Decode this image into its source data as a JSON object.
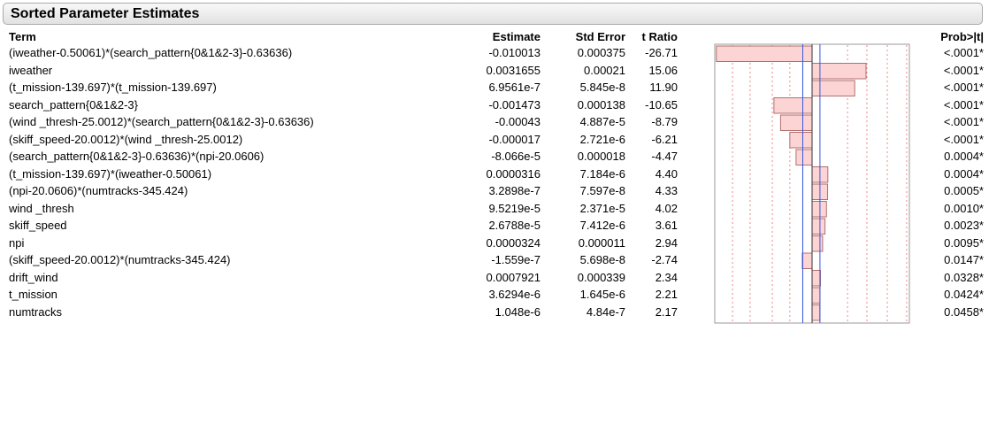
{
  "header": {
    "title": "Sorted Parameter Estimates"
  },
  "table": {
    "columns": [
      "Term",
      "Estimate",
      "Std Error",
      "t Ratio",
      "Prob>|t|"
    ],
    "rows": [
      [
        "(iweather-0.50061)*(search_pattern{0&1&2-3}-0.63636)",
        "-0.010013",
        "0.000375",
        "-26.71",
        "<.0001*"
      ],
      [
        "iweather",
        "0.0031655",
        "0.00021",
        "15.06",
        "<.0001*"
      ],
      [
        "(t_mission-139.697)*(t_mission-139.697)",
        "6.9561e-7",
        "5.845e-8",
        "11.90",
        "<.0001*"
      ],
      [
        "search_pattern{0&1&2-3}",
        "-0.001473",
        "0.000138",
        "-10.65",
        "<.0001*"
      ],
      [
        "(wind _thresh-25.0012)*(search_pattern{0&1&2-3}-0.63636)",
        "-0.00043",
        "4.887e-5",
        "-8.79",
        "<.0001*"
      ],
      [
        "(skiff_speed-20.0012)*(wind _thresh-25.0012)",
        "-0.000017",
        "2.721e-6",
        "-6.21",
        "<.0001*"
      ],
      [
        "(search_pattern{0&1&2-3}-0.63636)*(npi-20.0606)",
        "-8.066e-5",
        "0.000018",
        "-4.47",
        "0.0004*"
      ],
      [
        "(t_mission-139.697)*(iweather-0.50061)",
        "0.0000316",
        "7.184e-6",
        "4.40",
        "0.0004*"
      ],
      [
        "(npi-20.0606)*(numtracks-345.424)",
        "3.2898e-7",
        "7.597e-8",
        "4.33",
        "0.0005*"
      ],
      [
        "wind _thresh",
        "9.5219e-5",
        "2.371e-5",
        "4.02",
        "0.0010*"
      ],
      [
        "skiff_speed",
        "2.6788e-5",
        "7.412e-6",
        "3.61",
        "0.0023*"
      ],
      [
        "npi",
        "0.0000324",
        "0.000011",
        "2.94",
        "0.0095*"
      ],
      [
        "(skiff_speed-20.0012)*(numtracks-345.424)",
        "-1.559e-7",
        "5.698e-8",
        "-2.74",
        "0.0147*"
      ],
      [
        "drift_wind",
        "0.0007921",
        "0.000339",
        "2.34",
        "0.0328*"
      ],
      [
        "t_mission",
        "3.6294e-6",
        "1.645e-6",
        "2.21",
        "0.0424*"
      ],
      [
        "numtracks",
        "1.048e-6",
        "4.84e-7",
        "2.17",
        "0.0458*"
      ]
    ]
  }
}
